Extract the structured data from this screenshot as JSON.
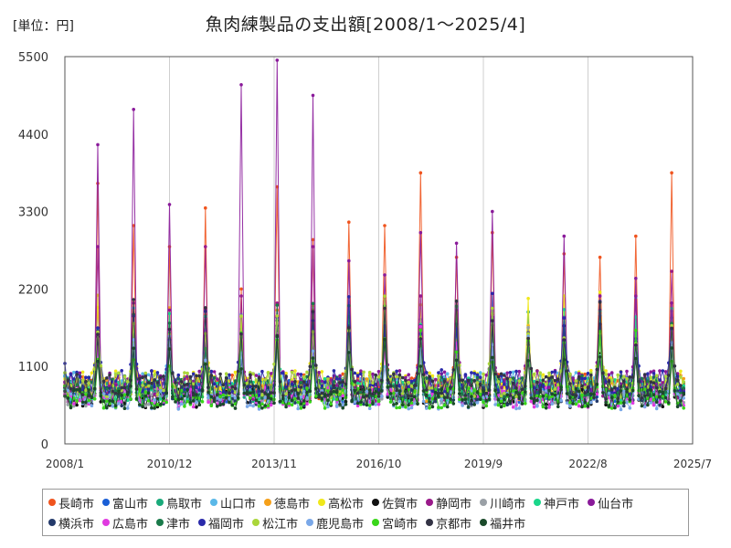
{
  "header": {
    "unit_label": "[単位：円]",
    "title": "魚肉練製品の支出額[2008/1～2025/4]"
  },
  "chart_data": {
    "type": "line",
    "title": "魚肉練製品の支出額[2008/1～2025/4]",
    "unit": "[単位：円]",
    "ylim": [
      0,
      5500
    ],
    "yticks": [
      "0",
      "1100",
      "2200",
      "3300",
      "4400",
      "5500"
    ],
    "xlim": [
      "2008/1",
      "2025/7"
    ],
    "xticks": [
      "2008/1",
      "2010/12",
      "2013/11",
      "2016/10",
      "2019/9",
      "2022/8",
      "2025/7"
    ],
    "grid": "vertical",
    "legend_position": "bottom",
    "december_peaks": [
      {
        "year": 2008,
        "values": {
          "長崎市": 3700,
          "仙台市": 4250,
          "静岡市": 2800
        }
      },
      {
        "year": 2009,
        "values": {
          "長崎市": 3100,
          "仙台市": 4750,
          "静岡市": 2000
        }
      },
      {
        "year": 2010,
        "values": {
          "長崎市": 2800,
          "仙台市": 3400,
          "静岡市": 1900
        }
      },
      {
        "year": 2011,
        "values": {
          "長崎市": 3350,
          "仙台市": 1900,
          "静岡市": 2800
        }
      },
      {
        "year": 2012,
        "values": {
          "長崎市": 2200,
          "仙台市": 5100,
          "静岡市": 2100
        }
      },
      {
        "year": 2013,
        "values": {
          "長崎市": 3650,
          "仙台市": 5450,
          "静岡市": 2000
        }
      },
      {
        "year": 2014,
        "values": {
          "長崎市": 2900,
          "仙台市": 4950,
          "静岡市": 2800
        }
      },
      {
        "year": 2015,
        "values": {
          "長崎市": 3150,
          "仙台市": 2600,
          "静岡市": 1800
        }
      },
      {
        "year": 2016,
        "values": {
          "長崎市": 3100,
          "仙台市": 2400,
          "静岡市": 1900
        }
      },
      {
        "year": 2017,
        "values": {
          "長崎市": 3850,
          "仙台市": 3000,
          "静岡市": 2100
        }
      },
      {
        "year": 2018,
        "values": {
          "長崎市": 2650,
          "仙台市": 2850,
          "静岡市": 1900
        }
      },
      {
        "year": 2019,
        "values": {
          "長崎市": 3000,
          "仙台市": 3300,
          "静岡市": 1800
        }
      },
      {
        "year": 2020,
        "values": {
          "長崎市": 1600,
          "仙台市": 1500,
          "静岡市": 1400
        }
      },
      {
        "year": 2021,
        "values": {
          "長崎市": 2700,
          "仙台市": 2950,
          "静岡市": 1800
        }
      },
      {
        "year": 2022,
        "values": {
          "長崎市": 2650,
          "仙台市": 2100,
          "静岡市": 1900
        }
      },
      {
        "year": 2023,
        "values": {
          "長崎市": 2950,
          "仙台市": 2350,
          "静岡市": 2100
        }
      },
      {
        "year": 2024,
        "values": {
          "長崎市": 3850,
          "仙台市": 2000,
          "静岡市": 2450
        }
      }
    ],
    "typical_monthly_range": [
      500,
      1100
    ],
    "series": [
      {
        "name": "長崎市",
        "color": "#f0541e"
      },
      {
        "name": "富山市",
        "color": "#1a5fd6"
      },
      {
        "name": "鳥取市",
        "color": "#1aaa7a"
      },
      {
        "name": "山口市",
        "color": "#5ab8e8"
      },
      {
        "name": "徳島市",
        "color": "#f5a01a"
      },
      {
        "name": "高松市",
        "color": "#f0e81a"
      },
      {
        "name": "佐賀市",
        "color": "#111111"
      },
      {
        "name": "静岡市",
        "color": "#9a1a8a"
      },
      {
        "name": "川崎市",
        "color": "#9aa0a6"
      },
      {
        "name": "神戸市",
        "color": "#1ad68a"
      },
      {
        "name": "仙台市",
        "color": "#8a1a9a"
      },
      {
        "name": "横浜市",
        "color": "#243a6a"
      },
      {
        "name": "広島市",
        "color": "#e03ae0"
      },
      {
        "name": "津市",
        "color": "#1a7a4a"
      },
      {
        "name": "福岡市",
        "color": "#2a2aaa"
      },
      {
        "name": "松江市",
        "color": "#aad63a"
      },
      {
        "name": "鹿児島市",
        "color": "#7aa8e8"
      },
      {
        "name": "宮崎市",
        "color": "#3ad61a"
      },
      {
        "name": "京都市",
        "color": "#333344"
      },
      {
        "name": "福井市",
        "color": "#1a4a2a"
      }
    ]
  }
}
